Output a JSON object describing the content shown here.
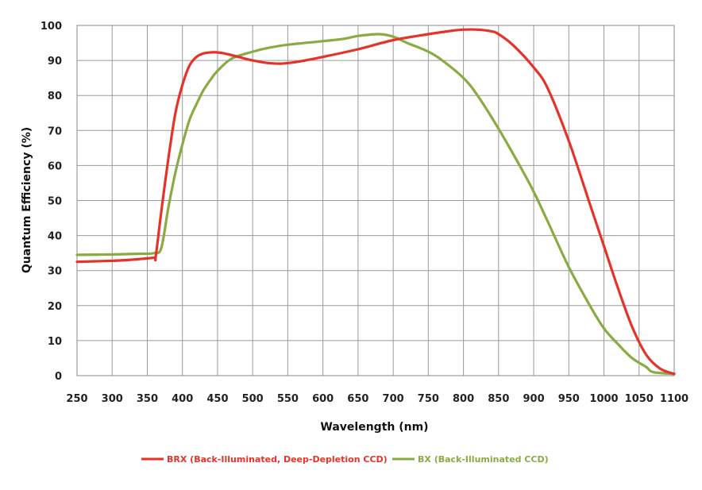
{
  "chart_data": {
    "type": "line",
    "xlabel": "Wavelength (nm)",
    "ylabel": "Quantum Efficiency (%)",
    "xlim": [
      250,
      1100
    ],
    "ylim": [
      0,
      100
    ],
    "x_ticks": [
      250,
      300,
      350,
      400,
      450,
      500,
      550,
      600,
      650,
      700,
      750,
      800,
      850,
      900,
      950,
      1000,
      1050,
      1100
    ],
    "y_ticks": [
      0,
      10,
      20,
      30,
      40,
      50,
      60,
      70,
      80,
      90,
      100
    ],
    "grid": true,
    "legend_position": "bottom",
    "series": [
      {
        "name": "BRX (Back-Illuminated, Deep-Depletion CCD)",
        "color": "#e63329",
        "x": [
          250,
          300,
          320,
          340,
          360,
          362,
          370,
          380,
          390,
          400,
          410,
          420,
          430,
          440,
          450,
          460,
          480,
          500,
          520,
          540,
          560,
          580,
          600,
          650,
          700,
          750,
          780,
          800,
          820,
          840,
          850,
          870,
          900,
          920,
          950,
          980,
          1000,
          1020,
          1040,
          1060,
          1080,
          1100
        ],
        "y": [
          32.5,
          32.8,
          33.0,
          33.3,
          33.7,
          34.0,
          47,
          62,
          75,
          83,
          88.5,
          91,
          92,
          92.3,
          92.3,
          92,
          91,
          90,
          89.3,
          89.1,
          89.5,
          90.2,
          91,
          93.2,
          95.8,
          97.5,
          98.4,
          98.8,
          98.8,
          98.3,
          97.5,
          94.5,
          88,
          82,
          67,
          49,
          37,
          25,
          14,
          6,
          2,
          0.5
        ]
      },
      {
        "name": "BX (Back-Illuminated CCD)",
        "color": "#8aab44",
        "x": [
          250,
          300,
          340,
          360,
          370,
          380,
          390,
          400,
          410,
          420,
          430,
          440,
          450,
          470,
          500,
          520,
          550,
          600,
          630,
          650,
          680,
          700,
          720,
          750,
          770,
          800,
          820,
          850,
          880,
          900,
          920,
          950,
          980,
          1000,
          1020,
          1040,
          1060,
          1070,
          1100
        ],
        "y": [
          34.5,
          34.6,
          34.8,
          35.0,
          36.5,
          48,
          58,
          66,
          73,
          77.5,
          81.5,
          84.5,
          87,
          90.5,
          92.5,
          93.5,
          94.5,
          95.5,
          96.2,
          97.0,
          97.5,
          96.8,
          95,
          92.5,
          90,
          85,
          80,
          70.5,
          60,
          52.5,
          44,
          31,
          20,
          13.5,
          9,
          5,
          2.5,
          1,
          0.5
        ]
      }
    ]
  }
}
